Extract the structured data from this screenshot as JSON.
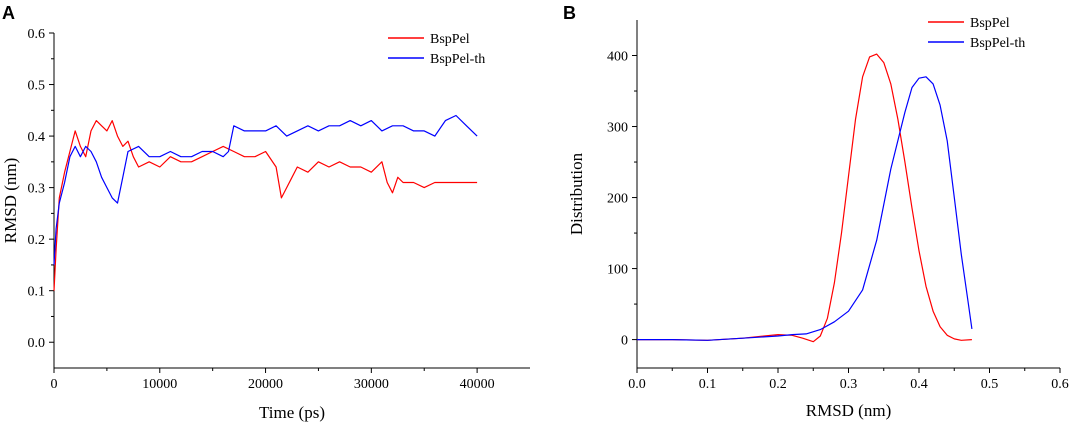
{
  "chart_data": [
    {
      "panel": "A",
      "type": "line",
      "xlabel": "Time  (ps)",
      "ylabel": "RMSD (nm)",
      "xlim": [
        0,
        45000
      ],
      "ylim": [
        -0.05,
        0.6
      ],
      "xticks": [
        0,
        10000,
        20000,
        30000,
        40000
      ],
      "yticks": [
        0.0,
        0.1,
        0.2,
        0.3,
        0.4,
        0.5,
        0.6
      ],
      "xtick_labels": [
        "0",
        "10000",
        "20000",
        "30000",
        "40000"
      ],
      "ytick_labels": [
        "0.0",
        "0.1",
        "0.2",
        "0.3",
        "0.4",
        "0.5",
        "0.6"
      ],
      "legend": "top-right",
      "series": [
        {
          "name": "BspPel",
          "color": "#ff0000",
          "x": [
            0,
            200,
            500,
            1000,
            1500,
            2000,
            2500,
            3000,
            3500,
            4000,
            4500,
            5000,
            5500,
            6000,
            6500,
            7000,
            7500,
            8000,
            9000,
            10000,
            11000,
            12000,
            13000,
            14000,
            15000,
            16000,
            17000,
            18000,
            19000,
            20000,
            21000,
            21500,
            22000,
            22500,
            23000,
            24000,
            25000,
            26000,
            27000,
            28000,
            29000,
            30000,
            31000,
            31500,
            32000,
            32500,
            33000,
            34000,
            35000,
            36000,
            37000,
            38000,
            39000,
            40000
          ],
          "y": [
            0.1,
            0.18,
            0.28,
            0.33,
            0.37,
            0.41,
            0.38,
            0.36,
            0.41,
            0.43,
            0.42,
            0.41,
            0.43,
            0.4,
            0.38,
            0.39,
            0.36,
            0.34,
            0.35,
            0.34,
            0.36,
            0.35,
            0.35,
            0.36,
            0.37,
            0.38,
            0.37,
            0.36,
            0.36,
            0.37,
            0.34,
            0.28,
            0.3,
            0.32,
            0.34,
            0.33,
            0.35,
            0.34,
            0.35,
            0.34,
            0.34,
            0.33,
            0.35,
            0.31,
            0.29,
            0.32,
            0.31,
            0.31,
            0.3,
            0.31,
            0.31,
            0.31,
            0.31,
            0.31
          ]
        },
        {
          "name": "BspPel-th",
          "color": "#0000ff",
          "x": [
            0,
            200,
            500,
            1000,
            1500,
            2000,
            2500,
            3000,
            3500,
            4000,
            4500,
            5000,
            5500,
            6000,
            6500,
            7000,
            8000,
            9000,
            10000,
            11000,
            12000,
            13000,
            14000,
            15000,
            16000,
            16500,
            17000,
            18000,
            19000,
            20000,
            21000,
            22000,
            23000,
            24000,
            25000,
            26000,
            27000,
            28000,
            29000,
            30000,
            31000,
            32000,
            33000,
            34000,
            35000,
            36000,
            37000,
            38000,
            39000,
            40000
          ],
          "y": [
            0.15,
            0.22,
            0.27,
            0.31,
            0.36,
            0.38,
            0.36,
            0.38,
            0.37,
            0.35,
            0.32,
            0.3,
            0.28,
            0.27,
            0.32,
            0.37,
            0.38,
            0.36,
            0.36,
            0.37,
            0.36,
            0.36,
            0.37,
            0.37,
            0.36,
            0.37,
            0.42,
            0.41,
            0.41,
            0.41,
            0.42,
            0.4,
            0.41,
            0.42,
            0.41,
            0.42,
            0.42,
            0.43,
            0.42,
            0.43,
            0.41,
            0.42,
            0.42,
            0.41,
            0.41,
            0.4,
            0.43,
            0.44,
            0.42,
            0.4
          ]
        }
      ]
    },
    {
      "panel": "B",
      "type": "line",
      "xlabel": "RMSD (nm)",
      "ylabel": "Distribution",
      "xlim": [
        0.0,
        0.6
      ],
      "ylim": [
        -40,
        450
      ],
      "xticks": [
        0.0,
        0.1,
        0.2,
        0.3,
        0.4,
        0.5,
        0.6
      ],
      "yticks": [
        0,
        100,
        200,
        300,
        400
      ],
      "xtick_labels": [
        "0.0",
        "0.1",
        "0.2",
        "0.3",
        "0.4",
        "0.5",
        "0.6"
      ],
      "ytick_labels": [
        "0",
        "100",
        "200",
        "300",
        "400"
      ],
      "legend": "top-right",
      "series": [
        {
          "name": "BspPel",
          "color": "#ff0000",
          "x": [
            0.0,
            0.05,
            0.1,
            0.15,
            0.2,
            0.22,
            0.235,
            0.25,
            0.26,
            0.27,
            0.28,
            0.29,
            0.3,
            0.31,
            0.32,
            0.33,
            0.34,
            0.35,
            0.36,
            0.37,
            0.38,
            0.39,
            0.4,
            0.41,
            0.42,
            0.43,
            0.44,
            0.45,
            0.46,
            0.475
          ],
          "y": [
            0,
            0,
            -1,
            2,
            7,
            6,
            2,
            -3,
            5,
            30,
            80,
            150,
            230,
            310,
            370,
            398,
            402,
            390,
            360,
            310,
            250,
            185,
            125,
            75,
            40,
            18,
            6,
            1,
            -1,
            0
          ]
        },
        {
          "name": "BspPel-th",
          "color": "#0000ff",
          "x": [
            0.0,
            0.05,
            0.1,
            0.15,
            0.2,
            0.22,
            0.24,
            0.26,
            0.28,
            0.3,
            0.32,
            0.34,
            0.36,
            0.38,
            0.39,
            0.4,
            0.41,
            0.42,
            0.43,
            0.44,
            0.45,
            0.46,
            0.47,
            0.475
          ],
          "y": [
            0,
            0,
            -1,
            2,
            5,
            7,
            8,
            14,
            25,
            40,
            70,
            140,
            240,
            320,
            355,
            368,
            370,
            360,
            330,
            280,
            200,
            120,
            50,
            15
          ]
        }
      ]
    }
  ]
}
